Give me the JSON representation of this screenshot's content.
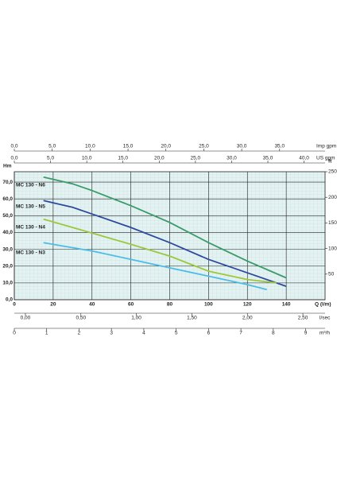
{
  "chart_data": {
    "type": "line",
    "xlabel": "Q (l/m)",
    "ylabel": "Hm",
    "y2label": "ft",
    "xlim": [
      0,
      160
    ],
    "xticks": [
      0,
      20,
      40,
      60,
      80,
      100,
      120,
      140
    ],
    "ylim": [
      0,
      76.2
    ],
    "yticks": [
      {
        "value": 0,
        "label": "0,0"
      },
      {
        "value": 10,
        "label": "10,0"
      },
      {
        "value": 20,
        "label": "20,0"
      },
      {
        "value": 30,
        "label": "30,0"
      },
      {
        "value": 40,
        "label": "40,0"
      },
      {
        "value": 50,
        "label": "50,0"
      },
      {
        "value": 60,
        "label": "60,0"
      },
      {
        "value": 70,
        "label": "70,0"
      }
    ],
    "y2lim": [
      0,
      250
    ],
    "y2ticks": [
      50,
      100,
      150,
      200,
      250
    ],
    "grid": true,
    "secondary_x_axes": [
      {
        "label": "Imp gpm",
        "xlim": [
          0,
          41
        ],
        "xticks": [
          {
            "value": 0,
            "label": "0,0"
          },
          {
            "value": 5,
            "label": "5,0"
          },
          {
            "value": 10,
            "label": "10,0"
          },
          {
            "value": 15,
            "label": "15,0"
          },
          {
            "value": 20,
            "label": "20,0"
          },
          {
            "value": 25,
            "label": "25,0"
          },
          {
            "value": 30,
            "label": "30,0"
          },
          {
            "value": 35,
            "label": "35,0"
          }
        ]
      },
      {
        "label": "US gpm",
        "xlim": [
          0,
          42.9
        ],
        "xticks": [
          {
            "value": 0,
            "label": "0,0"
          },
          {
            "value": 5,
            "label": "5,0"
          },
          {
            "value": 10,
            "label": "10,0"
          },
          {
            "value": 15,
            "label": "15,0"
          },
          {
            "value": 20,
            "label": "20,0"
          },
          {
            "value": 25,
            "label": "25,0"
          },
          {
            "value": 30,
            "label": "30,0"
          },
          {
            "value": 35,
            "label": "35,0"
          },
          {
            "value": 40,
            "label": "40,0"
          }
        ]
      },
      {
        "label": "l/sec",
        "xlim": [
          -0.1,
          2.7
        ],
        "xticks": [
          {
            "value": 0,
            "label": "0,00"
          },
          {
            "value": 0.5,
            "label": "0,50"
          },
          {
            "value": 1,
            "label": "1,00"
          },
          {
            "value": 1.5,
            "label": "1,50"
          },
          {
            "value": 2,
            "label": "2,00"
          },
          {
            "value": 2.5,
            "label": "2,50"
          }
        ]
      },
      {
        "label": "m³/h",
        "xlim": [
          0,
          9.6
        ],
        "xticks": [
          0,
          1,
          2,
          3,
          4,
          5,
          6,
          7,
          8,
          9
        ]
      }
    ],
    "series": [
      {
        "name": "MC 130 - N6",
        "color": "#3a9a6a",
        "x": [
          15,
          30,
          40,
          60,
          80,
          100,
          120,
          140
        ],
        "values": [
          73,
          69,
          65,
          56,
          46,
          34,
          23,
          13
        ]
      },
      {
        "name": "MC 130 - N5",
        "color": "#2e4a9e",
        "x": [
          15,
          30,
          40,
          60,
          80,
          100,
          120,
          140
        ],
        "values": [
          59,
          55,
          51,
          43,
          34,
          24,
          16,
          8
        ]
      },
      {
        "name": "MC 130 - N4",
        "color": "#9cc83c",
        "x": [
          15,
          30,
          60,
          80,
          100,
          120,
          135
        ],
        "values": [
          48,
          43,
          33,
          26,
          17,
          12,
          10
        ]
      },
      {
        "name": "MC 130 - N3",
        "color": "#4bbde8",
        "x": [
          15,
          40,
          60,
          80,
          100,
          120,
          130
        ],
        "values": [
          34,
          29,
          24,
          19,
          14,
          9,
          6
        ]
      }
    ]
  }
}
